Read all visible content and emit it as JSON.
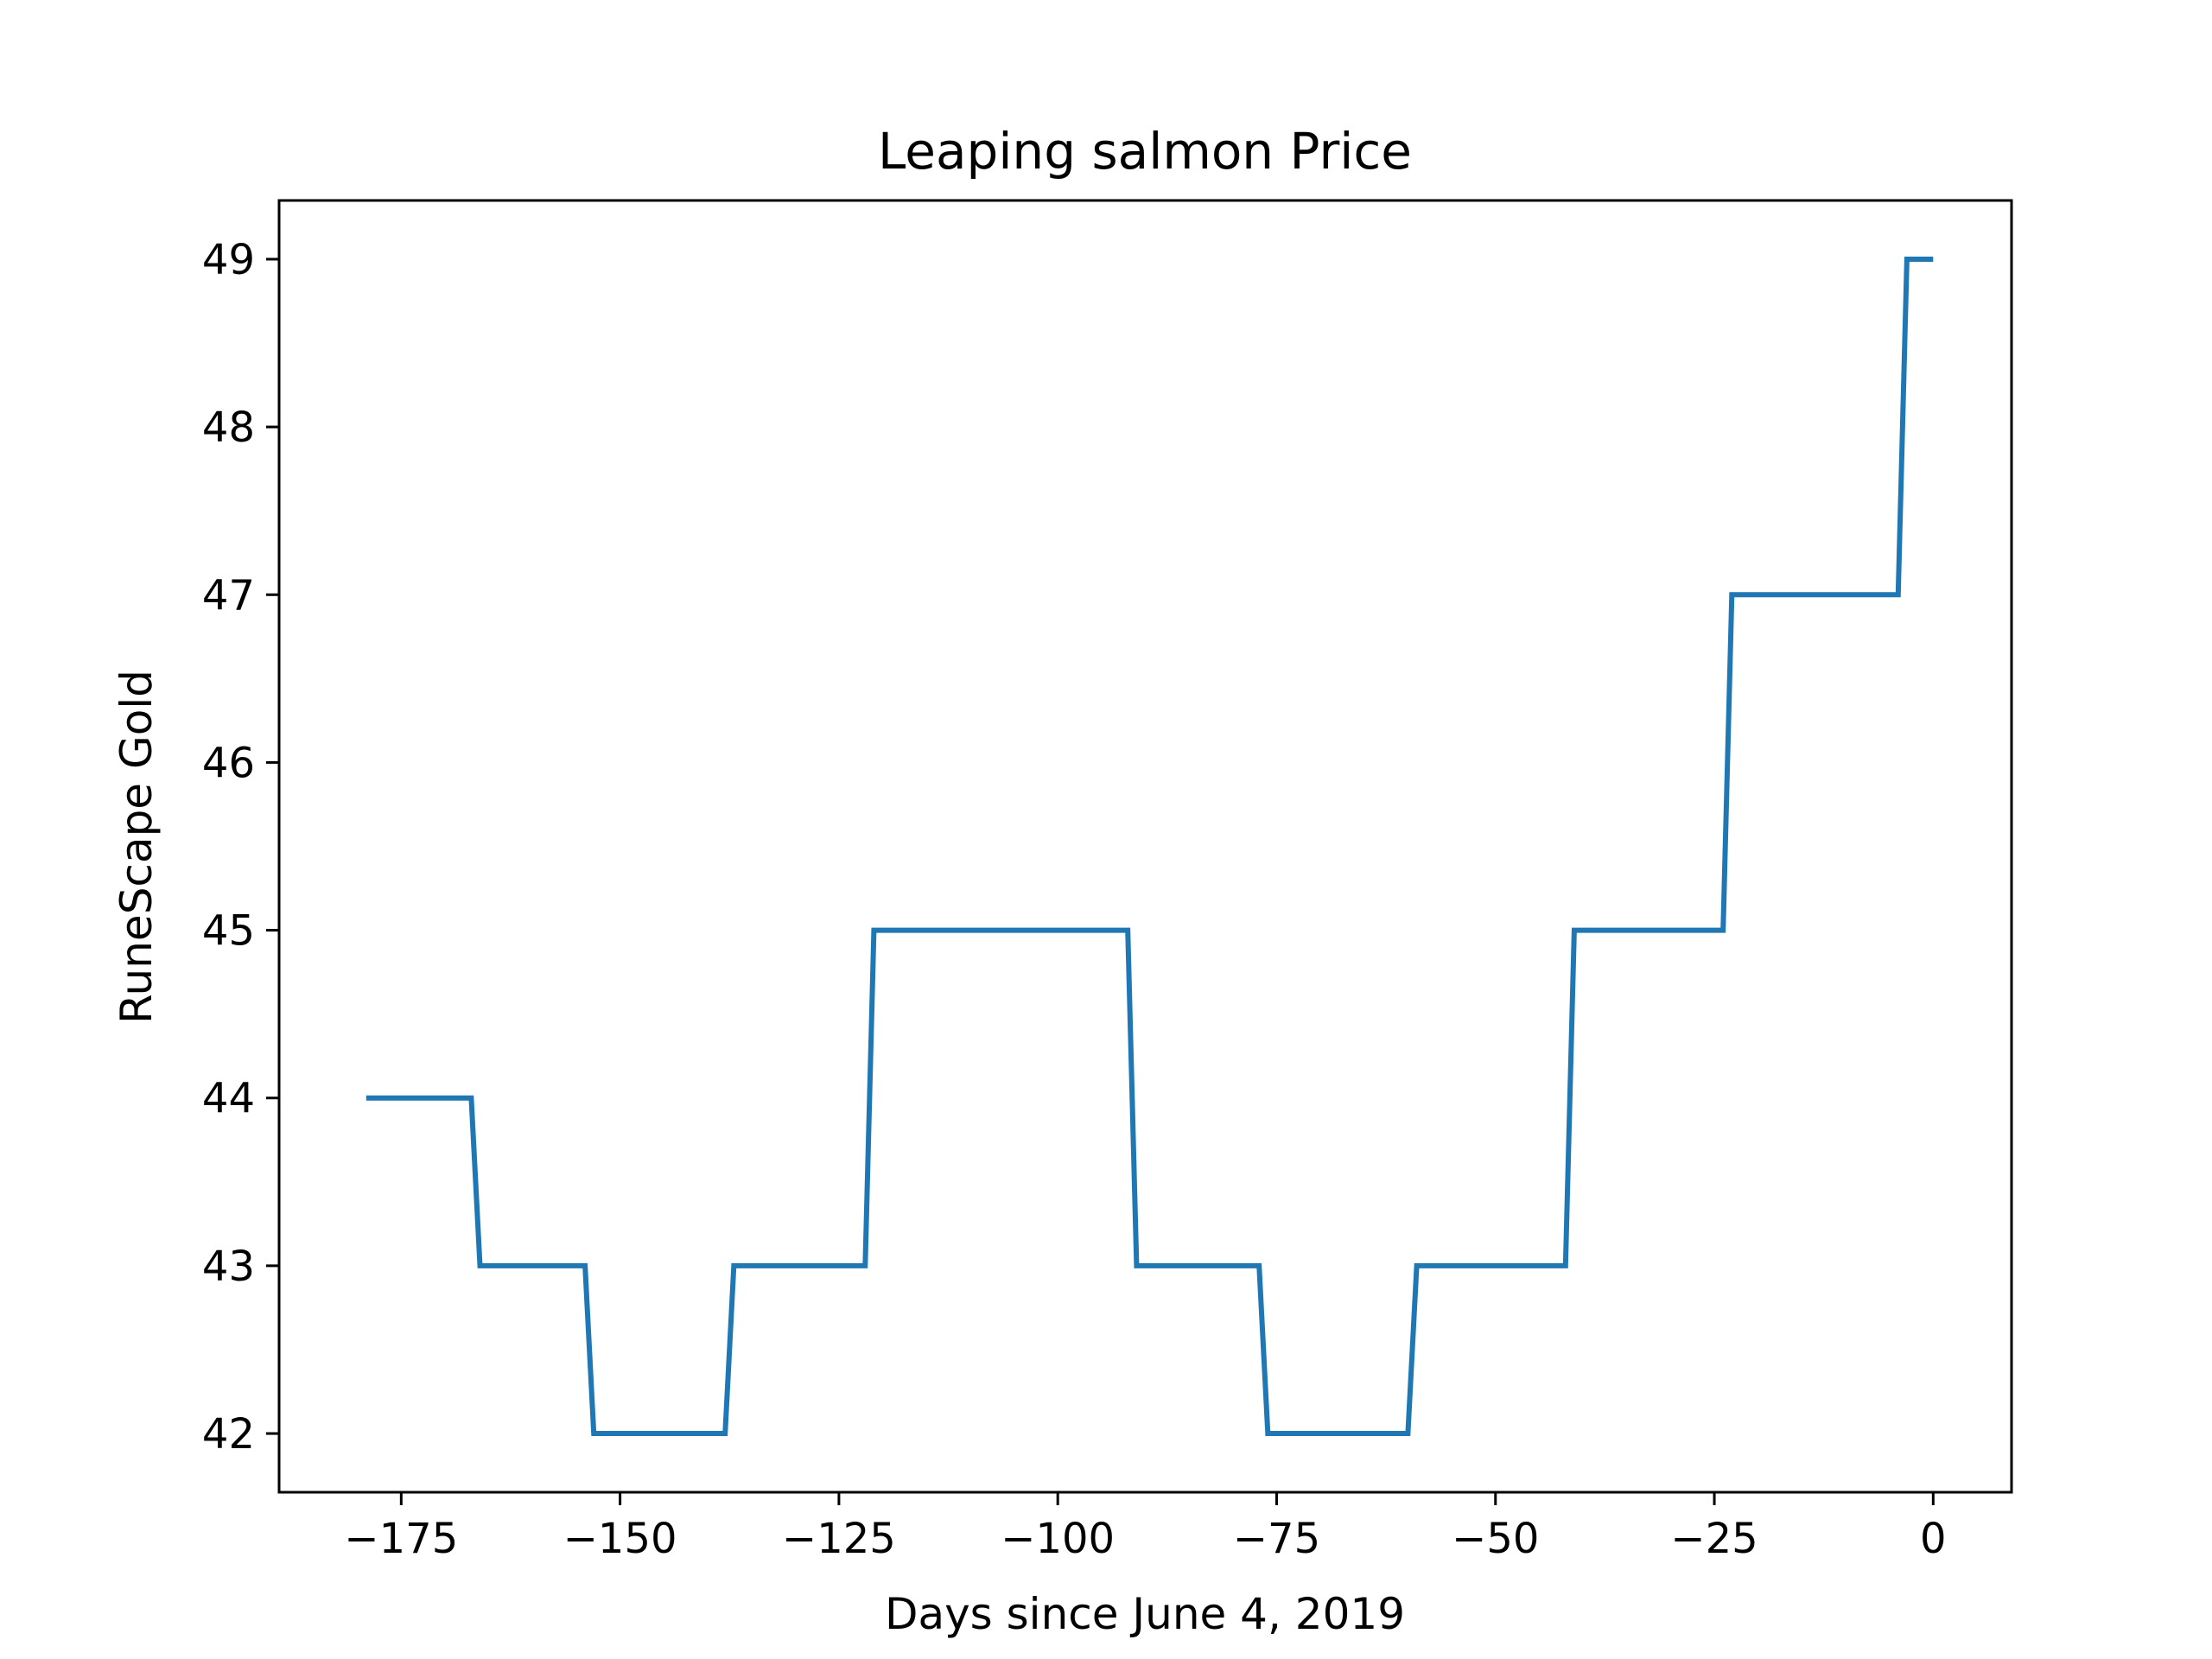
{
  "chart_data": {
    "type": "line",
    "title": "Leaping salmon Price",
    "xlabel": "Days since June 4, 2019",
    "ylabel": "RuneScape Gold",
    "xlim": [
      -188.95,
      8.95
    ],
    "ylim": [
      41.65,
      49.35
    ],
    "x_ticks": [
      -175,
      -150,
      -125,
      -100,
      -75,
      -50,
      -25,
      0
    ],
    "x_tick_labels": [
      "−175",
      "−150",
      "−125",
      "−100",
      "−75",
      "−50",
      "−25",
      "0"
    ],
    "y_ticks": [
      42,
      43,
      44,
      45,
      46,
      47,
      48,
      49
    ],
    "y_tick_labels": [
      "42",
      "43",
      "44",
      "45",
      "46",
      "47",
      "48",
      "49"
    ],
    "grid": false,
    "line_color": "#1f77b4",
    "series": [
      {
        "x": [
          -179,
          -167,
          -166,
          -154,
          -153,
          -138,
          -137,
          -122,
          -121,
          -92,
          -91,
          -77,
          -76,
          -60,
          -59,
          -42,
          -41,
          -24,
          -23,
          -4,
          -3,
          0
        ],
        "y": [
          44,
          44,
          43,
          43,
          42,
          42,
          43,
          43,
          45,
          45,
          43,
          43,
          42,
          42,
          43,
          43,
          45,
          45,
          47,
          47,
          49,
          49
        ]
      }
    ]
  }
}
